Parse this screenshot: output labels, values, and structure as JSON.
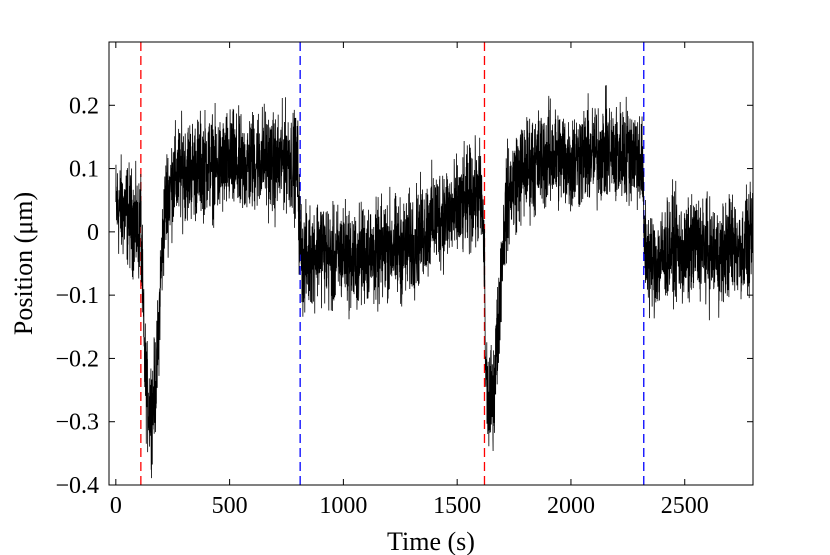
{
  "chart_data": {
    "type": "line",
    "title": "",
    "xlabel": "Time (s)",
    "ylabel": "Position (μm)",
    "xlim": [
      -30,
      2800
    ],
    "ylim": [
      -0.4,
      0.3
    ],
    "xticks": [
      0,
      500,
      1000,
      1500,
      2000,
      2500
    ],
    "xtick_labels": [
      "0",
      "500",
      "1000",
      "1500",
      "2000",
      "2500"
    ],
    "yticks": [
      -0.4,
      -0.3,
      -0.2,
      -0.1,
      0,
      0.1,
      0.2
    ],
    "ytick_labels": [
      "−0.4",
      "−0.3",
      "−0.2",
      "−0.1",
      "0",
      "0.1",
      "0.2"
    ],
    "grid": false,
    "series": [
      {
        "color": "#000000",
        "x": [
          0,
          50,
          100,
          110,
          125,
          140,
          160,
          180,
          200,
          220,
          250,
          300,
          350,
          400,
          450,
          500,
          550,
          600,
          650,
          700,
          750,
          800,
          805,
          820,
          850,
          900,
          950,
          1000,
          1050,
          1100,
          1150,
          1200,
          1250,
          1300,
          1350,
          1400,
          1450,
          1500,
          1550,
          1600,
          1610,
          1620,
          1625,
          1640,
          1660,
          1680,
          1700,
          1720,
          1750,
          1800,
          1850,
          1900,
          1950,
          2000,
          2050,
          2100,
          2150,
          2200,
          2250,
          2300,
          2315,
          2320,
          2330,
          2350,
          2400,
          2450,
          2500,
          2550,
          2600,
          2650,
          2700,
          2750,
          2800
        ],
        "values": [
          0.04,
          0.03,
          0.0,
          0.02,
          -0.2,
          -0.27,
          -0.28,
          -0.22,
          -0.05,
          0.05,
          0.08,
          0.1,
          0.1,
          0.11,
          0.1,
          0.11,
          0.1,
          0.11,
          0.12,
          0.1,
          0.12,
          0.1,
          0.02,
          -0.05,
          -0.04,
          -0.02,
          -0.05,
          -0.03,
          -0.05,
          -0.03,
          -0.04,
          -0.02,
          -0.03,
          -0.02,
          0.0,
          0.02,
          0.03,
          0.03,
          0.05,
          0.06,
          0.03,
          -0.05,
          -0.22,
          -0.28,
          -0.25,
          -0.15,
          -0.02,
          0.05,
          0.08,
          0.1,
          0.11,
          0.12,
          0.12,
          0.11,
          0.12,
          0.12,
          0.13,
          0.12,
          0.13,
          0.12,
          0.1,
          0.0,
          -0.03,
          -0.05,
          -0.04,
          -0.02,
          -0.04,
          -0.02,
          -0.03,
          -0.04,
          -0.02,
          -0.03,
          -0.02
        ],
        "noise_amplitude": 0.06
      }
    ],
    "vlines": [
      {
        "x": 110,
        "color": "#ff0000",
        "style": "dashed"
      },
      {
        "x": 810,
        "color": "#0000ff",
        "style": "dashed"
      },
      {
        "x": 1620,
        "color": "#ff0000",
        "style": "dashed"
      },
      {
        "x": 2320,
        "color": "#0000ff",
        "style": "dashed"
      }
    ]
  }
}
